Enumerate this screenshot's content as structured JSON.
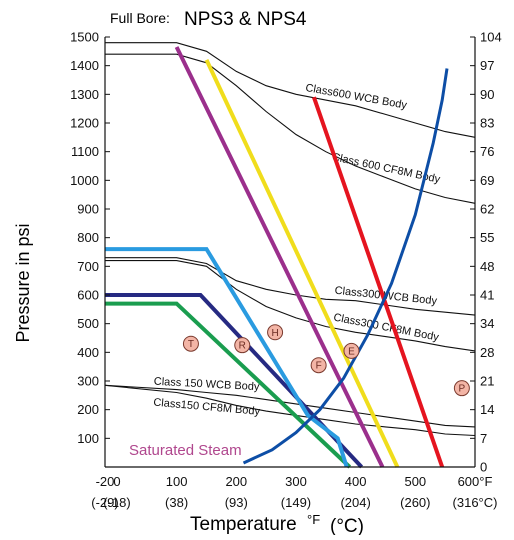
{
  "chart_data": {
    "type": "line",
    "title_prefix": "Full Bore:",
    "title": "NPS3 & NPS4",
    "xlabel": "Temperature",
    "xlabel_unit_f": "°F",
    "xlabel_unit_c": "(°C)",
    "ylabel": "Pressure in psi",
    "xlim": [
      -20,
      600
    ],
    "ylim": [
      0,
      1500
    ],
    "x_ticks": [
      "-20",
      "0",
      "100",
      "200",
      "300",
      "400",
      "500",
      "600°F"
    ],
    "x_ticks_c": [
      "(-29)",
      "(-18)",
      "(38)",
      "(93)",
      "(149)",
      "(204)",
      "(260)",
      "(316°C)"
    ],
    "y_ticks_left": [
      "100",
      "200",
      "300",
      "400",
      "500",
      "600",
      "700",
      "800",
      "900",
      "1000",
      "1100",
      "1200",
      "1300",
      "1400",
      "1500"
    ],
    "y_ticks_right": [
      "0",
      "7",
      "14",
      "21",
      "28",
      "34",
      "41",
      "48",
      "55",
      "62",
      "69",
      "76",
      "83",
      "90",
      "97",
      "104"
    ],
    "grid": false,
    "rating_curves": [
      {
        "label": "Class600 WCB Body",
        "color": "#111111",
        "points": [
          [
            -20,
            1480
          ],
          [
            100,
            1480
          ],
          [
            150,
            1450
          ],
          [
            200,
            1380
          ],
          [
            250,
            1330
          ],
          [
            300,
            1300
          ],
          [
            350,
            1280
          ],
          [
            400,
            1260
          ],
          [
            450,
            1230
          ],
          [
            500,
            1200
          ],
          [
            550,
            1170
          ],
          [
            600,
            1150
          ]
        ]
      },
      {
        "label": "Class 600 CF8M Body",
        "color": "#111111",
        "points": [
          [
            -20,
            1440
          ],
          [
            100,
            1440
          ],
          [
            150,
            1410
          ],
          [
            200,
            1330
          ],
          [
            250,
            1240
          ],
          [
            300,
            1160
          ],
          [
            350,
            1100
          ],
          [
            400,
            1050
          ],
          [
            450,
            1010
          ],
          [
            500,
            970
          ],
          [
            550,
            940
          ],
          [
            600,
            920
          ]
        ]
      },
      {
        "label": "Class300 WCB Body",
        "color": "#111111",
        "points": [
          [
            -20,
            730
          ],
          [
            100,
            730
          ],
          [
            150,
            710
          ],
          [
            200,
            650
          ],
          [
            250,
            620
          ],
          [
            300,
            600
          ],
          [
            350,
            585
          ],
          [
            400,
            580
          ],
          [
            450,
            565
          ],
          [
            500,
            550
          ],
          [
            550,
            540
          ],
          [
            600,
            530
          ]
        ]
      },
      {
        "label": "Class300 CF8M Body",
        "color": "#111111",
        "points": [
          [
            -20,
            720
          ],
          [
            100,
            720
          ],
          [
            150,
            700
          ],
          [
            200,
            620
          ],
          [
            250,
            560
          ],
          [
            300,
            520
          ],
          [
            350,
            490
          ],
          [
            400,
            470
          ],
          [
            450,
            455
          ],
          [
            500,
            440
          ],
          [
            550,
            420
          ],
          [
            600,
            405
          ]
        ]
      },
      {
        "label": "Class 150 WCB Body",
        "color": "#111111",
        "points": [
          [
            -20,
            285
          ],
          [
            100,
            270
          ],
          [
            150,
            260
          ],
          [
            200,
            250
          ],
          [
            250,
            235
          ],
          [
            300,
            220
          ],
          [
            350,
            205
          ],
          [
            400,
            190
          ],
          [
            450,
            175
          ],
          [
            500,
            160
          ],
          [
            550,
            145
          ],
          [
            600,
            140
          ]
        ]
      },
      {
        "label": "Class150 CF8M Body",
        "color": "#111111",
        "points": [
          [
            -20,
            285
          ],
          [
            100,
            260
          ],
          [
            150,
            240
          ],
          [
            200,
            215
          ],
          [
            250,
            195
          ],
          [
            300,
            180
          ],
          [
            350,
            165
          ],
          [
            400,
            150
          ],
          [
            450,
            140
          ],
          [
            500,
            130
          ],
          [
            550,
            115
          ],
          [
            600,
            110
          ]
        ]
      }
    ],
    "seat_lines": [
      {
        "marker": "T",
        "color": "#1a9d4f",
        "points": [
          [
            -20,
            570
          ],
          [
            100,
            570
          ],
          [
            390,
            0
          ]
        ]
      },
      {
        "marker": "R",
        "color": "#262a82",
        "points": [
          [
            -20,
            600
          ],
          [
            140,
            600
          ],
          [
            410,
            0
          ]
        ]
      },
      {
        "marker": "H",
        "color": "#9b2f8c",
        "points": [
          [
            100,
            1465
          ],
          [
            445,
            0
          ]
        ]
      },
      {
        "marker": "F",
        "color": "#2a9be0",
        "points": [
          [
            -20,
            760
          ],
          [
            150,
            760
          ],
          [
            320,
            180
          ],
          [
            370,
            100
          ],
          [
            385,
            0
          ]
        ]
      },
      {
        "marker": "E",
        "color": "#f0dd1c",
        "points": [
          [
            150,
            1420
          ],
          [
            470,
            0
          ]
        ]
      },
      {
        "marker": "P",
        "color": "#e5141f",
        "points": [
          [
            330,
            1290
          ],
          [
            545,
            0
          ]
        ]
      }
    ],
    "saturated_steam": {
      "label": "Saturated Steam",
      "color": "#0d4ea6",
      "points": [
        [
          212,
          14
        ],
        [
          260,
          60
        ],
        [
          300,
          120
        ],
        [
          340,
          200
        ],
        [
          380,
          310
        ],
        [
          420,
          460
        ],
        [
          460,
          640
        ],
        [
          500,
          880
        ],
        [
          530,
          1130
        ],
        [
          545,
          1280
        ],
        [
          553,
          1390
        ]
      ]
    },
    "markers": [
      {
        "letter": "T",
        "x": 124,
        "y": 430
      },
      {
        "letter": "R",
        "x": 210,
        "y": 425
      },
      {
        "letter": "H",
        "x": 265,
        "y": 470
      },
      {
        "letter": "F",
        "x": 338,
        "y": 355
      },
      {
        "letter": "E",
        "x": 393,
        "y": 405
      },
      {
        "letter": "P",
        "x": 578,
        "y": 275
      }
    ]
  }
}
